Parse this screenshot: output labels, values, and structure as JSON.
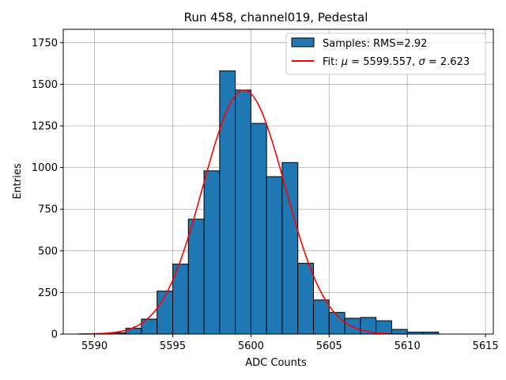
{
  "chart_data": {
    "type": "bar",
    "title": "Run 458, channel019, Pedestal",
    "xlabel": "ADC Counts",
    "ylabel": "Entries",
    "xlim": [
      5588,
      5615.5
    ],
    "ylim": [
      0,
      1830
    ],
    "xticks": [
      5590,
      5595,
      5600,
      5605,
      5610,
      5615
    ],
    "yticks": [
      0,
      250,
      500,
      750,
      1000,
      1250,
      1500,
      1750
    ],
    "grid": true,
    "legend_position": "top-right",
    "histogram": {
      "name": "Samples: RMS=2.92",
      "color": "#1f77b4",
      "edge_color": "#000000",
      "bin_edges": [
        5589,
        5590,
        5591,
        5592,
        5593,
        5594,
        5595,
        5596,
        5597,
        5598,
        5599,
        5600,
        5601,
        5602,
        5603,
        5604,
        5605,
        5606,
        5607,
        5608,
        5609,
        5610,
        5611,
        5612
      ],
      "counts": [
        0,
        0,
        8,
        35,
        90,
        258,
        420,
        690,
        980,
        1580,
        1465,
        1265,
        945,
        1030,
        425,
        205,
        130,
        95,
        100,
        80,
        28,
        12,
        12
      ]
    },
    "fit": {
      "name_prefix": "Fit: ",
      "mu_symbol": "μ",
      "mu_text": " = 5599.557, ",
      "sigma_symbol": "σ",
      "sigma_text": " = 2.623",
      "color": "#ff0000",
      "mu": 5599.557,
      "sigma": 2.623,
      "amplitude": 1465,
      "x_range": [
        5589,
        5610
      ]
    }
  }
}
